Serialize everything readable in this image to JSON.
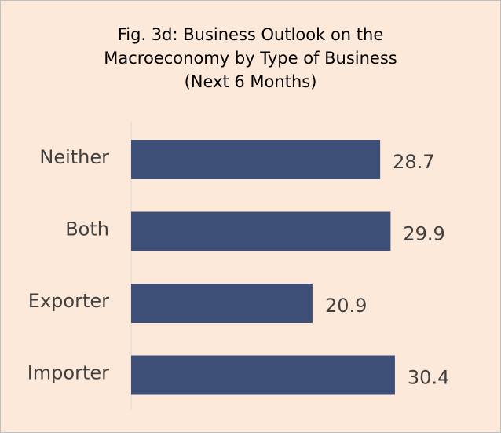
{
  "chart_data": {
    "type": "bar",
    "orientation": "horizontal",
    "title": "Fig. 3d: Business Outlook  on the\nMacroeconomy by Type of Business\n(Next 6 Months)",
    "categories": [
      "Neither",
      "Both",
      "Exporter",
      "Importer"
    ],
    "values": [
      28.7,
      29.9,
      20.9,
      30.4
    ],
    "color": "#3f5078"
  }
}
